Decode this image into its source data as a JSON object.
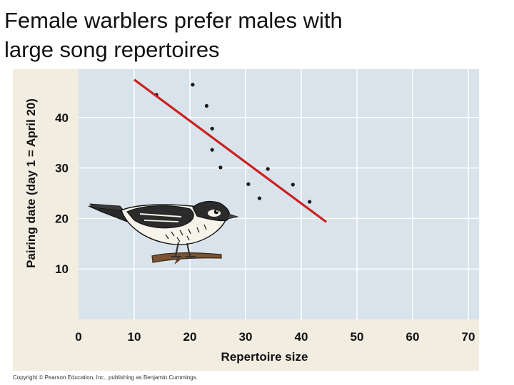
{
  "slide": {
    "title_line1": "Female warblers prefer males with",
    "title_line2": "large song repertoires",
    "copyright": "Copyright © Pearson Education, Inc., publishing as Benjamin Cummings."
  },
  "colors": {
    "plot_background": "#d8e3ec",
    "panel_background": "#f1ede1",
    "grid": "#ffffff",
    "points": "#1a1a1a",
    "trend_line": "#cc2020"
  },
  "chart_data": {
    "type": "scatter",
    "title": "",
    "xlabel": "Repertoire size",
    "ylabel": "Pairing date (day 1 = April 20)",
    "xlim": [
      0,
      70
    ],
    "ylim": [
      0,
      50
    ],
    "x_ticks": [
      0,
      10,
      20,
      30,
      40,
      50,
      60,
      70
    ],
    "y_ticks": [
      10,
      20,
      30,
      40
    ],
    "grid": true,
    "points": [
      {
        "x": 14,
        "y": 44.5
      },
      {
        "x": 20.5,
        "y": 46.5
      },
      {
        "x": 23,
        "y": 42.3
      },
      {
        "x": 24,
        "y": 37.8
      },
      {
        "x": 24,
        "y": 33.6
      },
      {
        "x": 25.5,
        "y": 30.1
      },
      {
        "x": 30.5,
        "y": 26.8
      },
      {
        "x": 32.5,
        "y": 24
      },
      {
        "x": 34,
        "y": 29.8
      },
      {
        "x": 38.5,
        "y": 26.7
      },
      {
        "x": 41.5,
        "y": 23.3
      }
    ],
    "trend_line": {
      "x": [
        10,
        44.5
      ],
      "y": [
        47.5,
        19.3
      ]
    },
    "illustration": "warbler-bird-on-branch"
  }
}
